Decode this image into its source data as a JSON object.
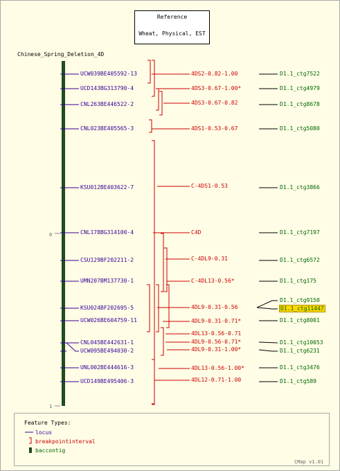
{
  "reference": {
    "title": "Reference",
    "subtitle": "Wheat, Physical, EST"
  },
  "map_title": "Chinese_Spring_Deletion_4D",
  "scale": {
    "top_label": "0",
    "bottom_label": "1"
  },
  "colors": {
    "locus": "#330099",
    "breakpoint": "#cc0000",
    "contig": "#006600",
    "bar": "#1e4d1e",
    "highlight_bg": "#ffd700"
  },
  "loci": [
    {
      "name": "UCW039BE405592-13"
    },
    {
      "name": "UCD143BG313790-4"
    },
    {
      "name": "CNL263BE446522-2"
    },
    {
      "name": "CNL023BE405565-3"
    },
    {
      "name": "KSU012BE403622-7"
    },
    {
      "name": "CNL178BG314100-4"
    },
    {
      "name": "CSU129BF202211-2"
    },
    {
      "name": "UMN207BM137730-1"
    },
    {
      "name": "KSU024BF202695-5"
    },
    {
      "name": "UCW026BE604759-11"
    },
    {
      "name": "CNL045BE442631-1"
    },
    {
      "name": "UCW095BE494030-2"
    },
    {
      "name": "UNL002BE444616-3"
    },
    {
      "name": "UCD149BE495406-3"
    }
  ],
  "breakpoints": [
    {
      "label": "4DS2-0.82-1.00"
    },
    {
      "label": "4DS3-0.67-1.00*"
    },
    {
      "label": "4DS3-0.67-0.82"
    },
    {
      "label": "4DS1-0.53-0.67"
    },
    {
      "label": "C-4DS1-0.53"
    },
    {
      "label": "C4D"
    },
    {
      "label": "C-4DL9-0.31"
    },
    {
      "label": "C-4DL13-0.56*"
    },
    {
      "label": "4DL9-0.31-0.56"
    },
    {
      "label": "4DL9-0.31-0.71*"
    },
    {
      "label": "4DL13-0.56-0.71"
    },
    {
      "label": "4DL9-0.56-0.71*"
    },
    {
      "label": "4DL9-0.31-1.00*"
    },
    {
      "label": "4DL13-0.56-1.00*"
    },
    {
      "label": "4DL12-0.71-1.00"
    }
  ],
  "contigs": [
    {
      "label": "D1.1_ctg7522"
    },
    {
      "label": "D1.1_ctg4979"
    },
    {
      "label": "D1.1_ctg8678"
    },
    {
      "label": "D1.1_ctg5080"
    },
    {
      "label": "D1.1_ctg3866"
    },
    {
      "label": "D1.1_ctg7197"
    },
    {
      "label": "D1.1_ctg6572"
    },
    {
      "label": "D1.1_ctg175"
    },
    {
      "label": "D1.1_ctg9150"
    },
    {
      "label": "D1.1_ctg11447",
      "highlighted": true
    },
    {
      "label": "D1.1_ctg8001"
    },
    {
      "label": "D1.1_ctg10053"
    },
    {
      "label": "D1.1_ctg6231"
    },
    {
      "label": "D1.1_ctg3476"
    },
    {
      "label": "D1.1_ctg589"
    }
  ],
  "legend": {
    "title": "Feature Types:",
    "items": [
      {
        "label": "locus",
        "icon": "line-icon"
      },
      {
        "label": "breakpointinterval",
        "icon": "bracket-icon"
      },
      {
        "label": "baccontig",
        "icon": "bar-icon"
      }
    ]
  },
  "footer": "CMap v1.01"
}
